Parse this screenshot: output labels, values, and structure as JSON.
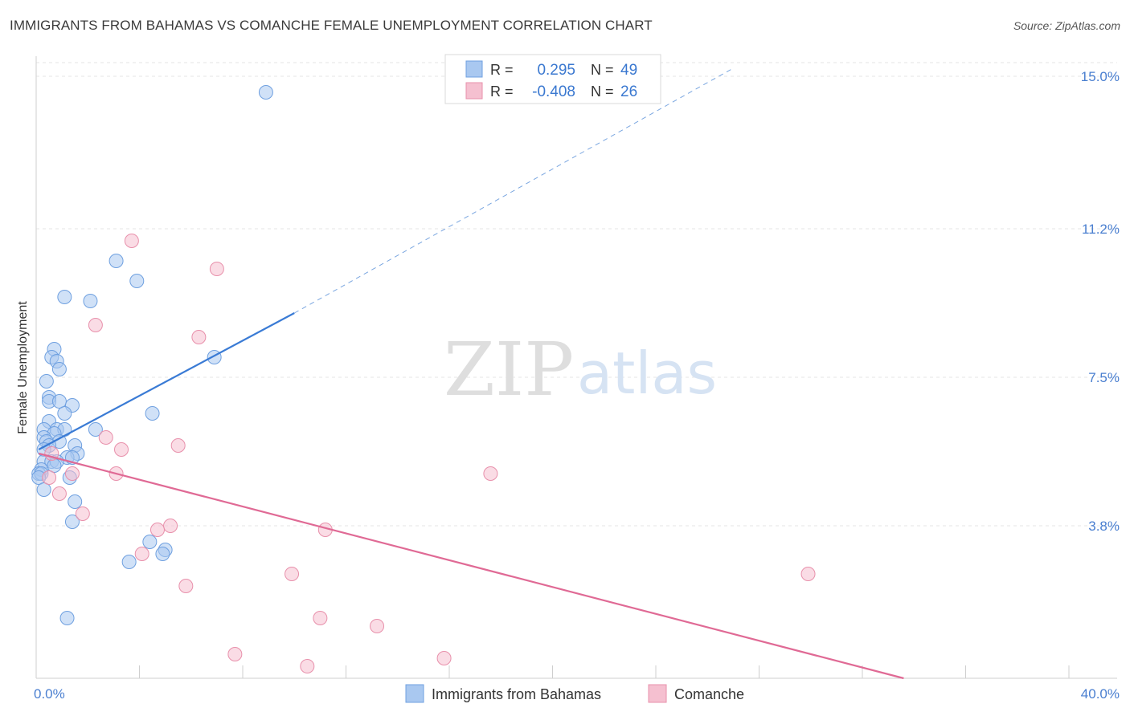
{
  "header": {
    "title": "IMMIGRANTS FROM BAHAMAS VS COMANCHE FEMALE UNEMPLOYMENT CORRELATION CHART",
    "source": "Source: ZipAtlas.com"
  },
  "watermark": {
    "zip": "ZIP",
    "atlas": "atlas"
  },
  "legend": {
    "rows": [
      {
        "r_label": "R =",
        "r_value": "0.295",
        "n_label": "N =",
        "n_value": "49",
        "color": "#a9c8f0",
        "stroke": "#6fa0e0"
      },
      {
        "r_label": "R =",
        "r_value": "-0.408",
        "n_label": "N =",
        "n_value": "26",
        "color": "#f5c0d0",
        "stroke": "#e890ab"
      }
    ]
  },
  "bottom_legend": {
    "items": [
      {
        "label": "Immigrants from Bahamas",
        "color": "#a9c8f0",
        "stroke": "#6fa0e0"
      },
      {
        "label": "Comanche",
        "color": "#f5c0d0",
        "stroke": "#e890ab"
      }
    ]
  },
  "chart_data": {
    "type": "scatter",
    "title": "IMMIGRANTS FROM BAHAMAS VS COMANCHE FEMALE UNEMPLOYMENT CORRELATION CHART",
    "xlabel": "",
    "ylabel": "Female Unemployment",
    "xlim": [
      0,
      40
    ],
    "ylim": [
      0,
      15.5
    ],
    "x_tick_labels": [
      "0.0%",
      "40.0%"
    ],
    "y_ticks": [
      3.8,
      7.5,
      11.2,
      15.0
    ],
    "y_tick_labels": [
      "3.8%",
      "7.5%",
      "11.2%",
      "15.0%"
    ],
    "grid": true,
    "series": [
      {
        "name": "Immigrants from Bahamas",
        "color": "#a9c8f0",
        "stroke": "#6fa0e0",
        "points": [
          [
            8.9,
            14.6
          ],
          [
            3.1,
            10.4
          ],
          [
            3.9,
            9.9
          ],
          [
            1.1,
            9.5
          ],
          [
            2.1,
            9.4
          ],
          [
            0.7,
            8.2
          ],
          [
            0.6,
            8.0
          ],
          [
            0.8,
            7.9
          ],
          [
            0.9,
            7.7
          ],
          [
            6.9,
            8.0
          ],
          [
            0.4,
            7.4
          ],
          [
            0.5,
            7.0
          ],
          [
            0.5,
            6.9
          ],
          [
            0.9,
            6.9
          ],
          [
            1.4,
            6.8
          ],
          [
            1.1,
            6.6
          ],
          [
            4.5,
            6.6
          ],
          [
            0.5,
            6.4
          ],
          [
            0.8,
            6.2
          ],
          [
            1.1,
            6.2
          ],
          [
            0.3,
            6.2
          ],
          [
            2.3,
            6.2
          ],
          [
            0.7,
            6.1
          ],
          [
            0.3,
            6.0
          ],
          [
            0.4,
            5.9
          ],
          [
            0.9,
            5.9
          ],
          [
            0.5,
            5.8
          ],
          [
            1.5,
            5.8
          ],
          [
            0.3,
            5.7
          ],
          [
            1.6,
            5.6
          ],
          [
            1.2,
            5.5
          ],
          [
            1.4,
            5.5
          ],
          [
            0.3,
            5.4
          ],
          [
            0.6,
            5.4
          ],
          [
            0.8,
            5.4
          ],
          [
            0.7,
            5.3
          ],
          [
            0.2,
            5.2
          ],
          [
            0.1,
            5.1
          ],
          [
            0.2,
            5.1
          ],
          [
            0.1,
            5.0
          ],
          [
            1.3,
            5.0
          ],
          [
            0.3,
            4.7
          ],
          [
            1.5,
            4.4
          ],
          [
            1.4,
            3.9
          ],
          [
            4.4,
            3.4
          ],
          [
            5.0,
            3.2
          ],
          [
            4.9,
            3.1
          ],
          [
            3.6,
            2.9
          ],
          [
            1.2,
            1.5
          ]
        ]
      },
      {
        "name": "Comanche",
        "color": "#f5c0d0",
        "stroke": "#e890ab",
        "points": [
          [
            3.7,
            10.9
          ],
          [
            7.0,
            10.2
          ],
          [
            2.3,
            8.8
          ],
          [
            6.3,
            8.5
          ],
          [
            2.7,
            6.0
          ],
          [
            5.5,
            5.8
          ],
          [
            3.3,
            5.7
          ],
          [
            0.6,
            5.6
          ],
          [
            1.4,
            5.1
          ],
          [
            3.1,
            5.1
          ],
          [
            17.6,
            5.1
          ],
          [
            0.5,
            5.0
          ],
          [
            0.9,
            4.6
          ],
          [
            1.8,
            4.1
          ],
          [
            5.2,
            3.8
          ],
          [
            4.7,
            3.7
          ],
          [
            11.2,
            3.7
          ],
          [
            4.1,
            3.1
          ],
          [
            9.9,
            2.6
          ],
          [
            29.9,
            2.6
          ],
          [
            5.8,
            2.3
          ],
          [
            11.0,
            1.5
          ],
          [
            13.2,
            1.3
          ],
          [
            7.7,
            0.6
          ],
          [
            15.8,
            0.5
          ],
          [
            10.5,
            0.3
          ]
        ]
      }
    ],
    "trend_lines": [
      {
        "series": "Immigrants from Bahamas",
        "solid": [
          [
            0.1,
            5.7
          ],
          [
            10.0,
            9.1
          ]
        ],
        "dashed": [
          [
            10.0,
            9.1
          ],
          [
            27.0,
            15.2
          ]
        ],
        "color": "#3a7bd5"
      },
      {
        "series": "Comanche",
        "solid": [
          [
            0.1,
            5.6
          ],
          [
            33.6,
            0.0
          ]
        ],
        "color": "#e06a95"
      }
    ]
  }
}
